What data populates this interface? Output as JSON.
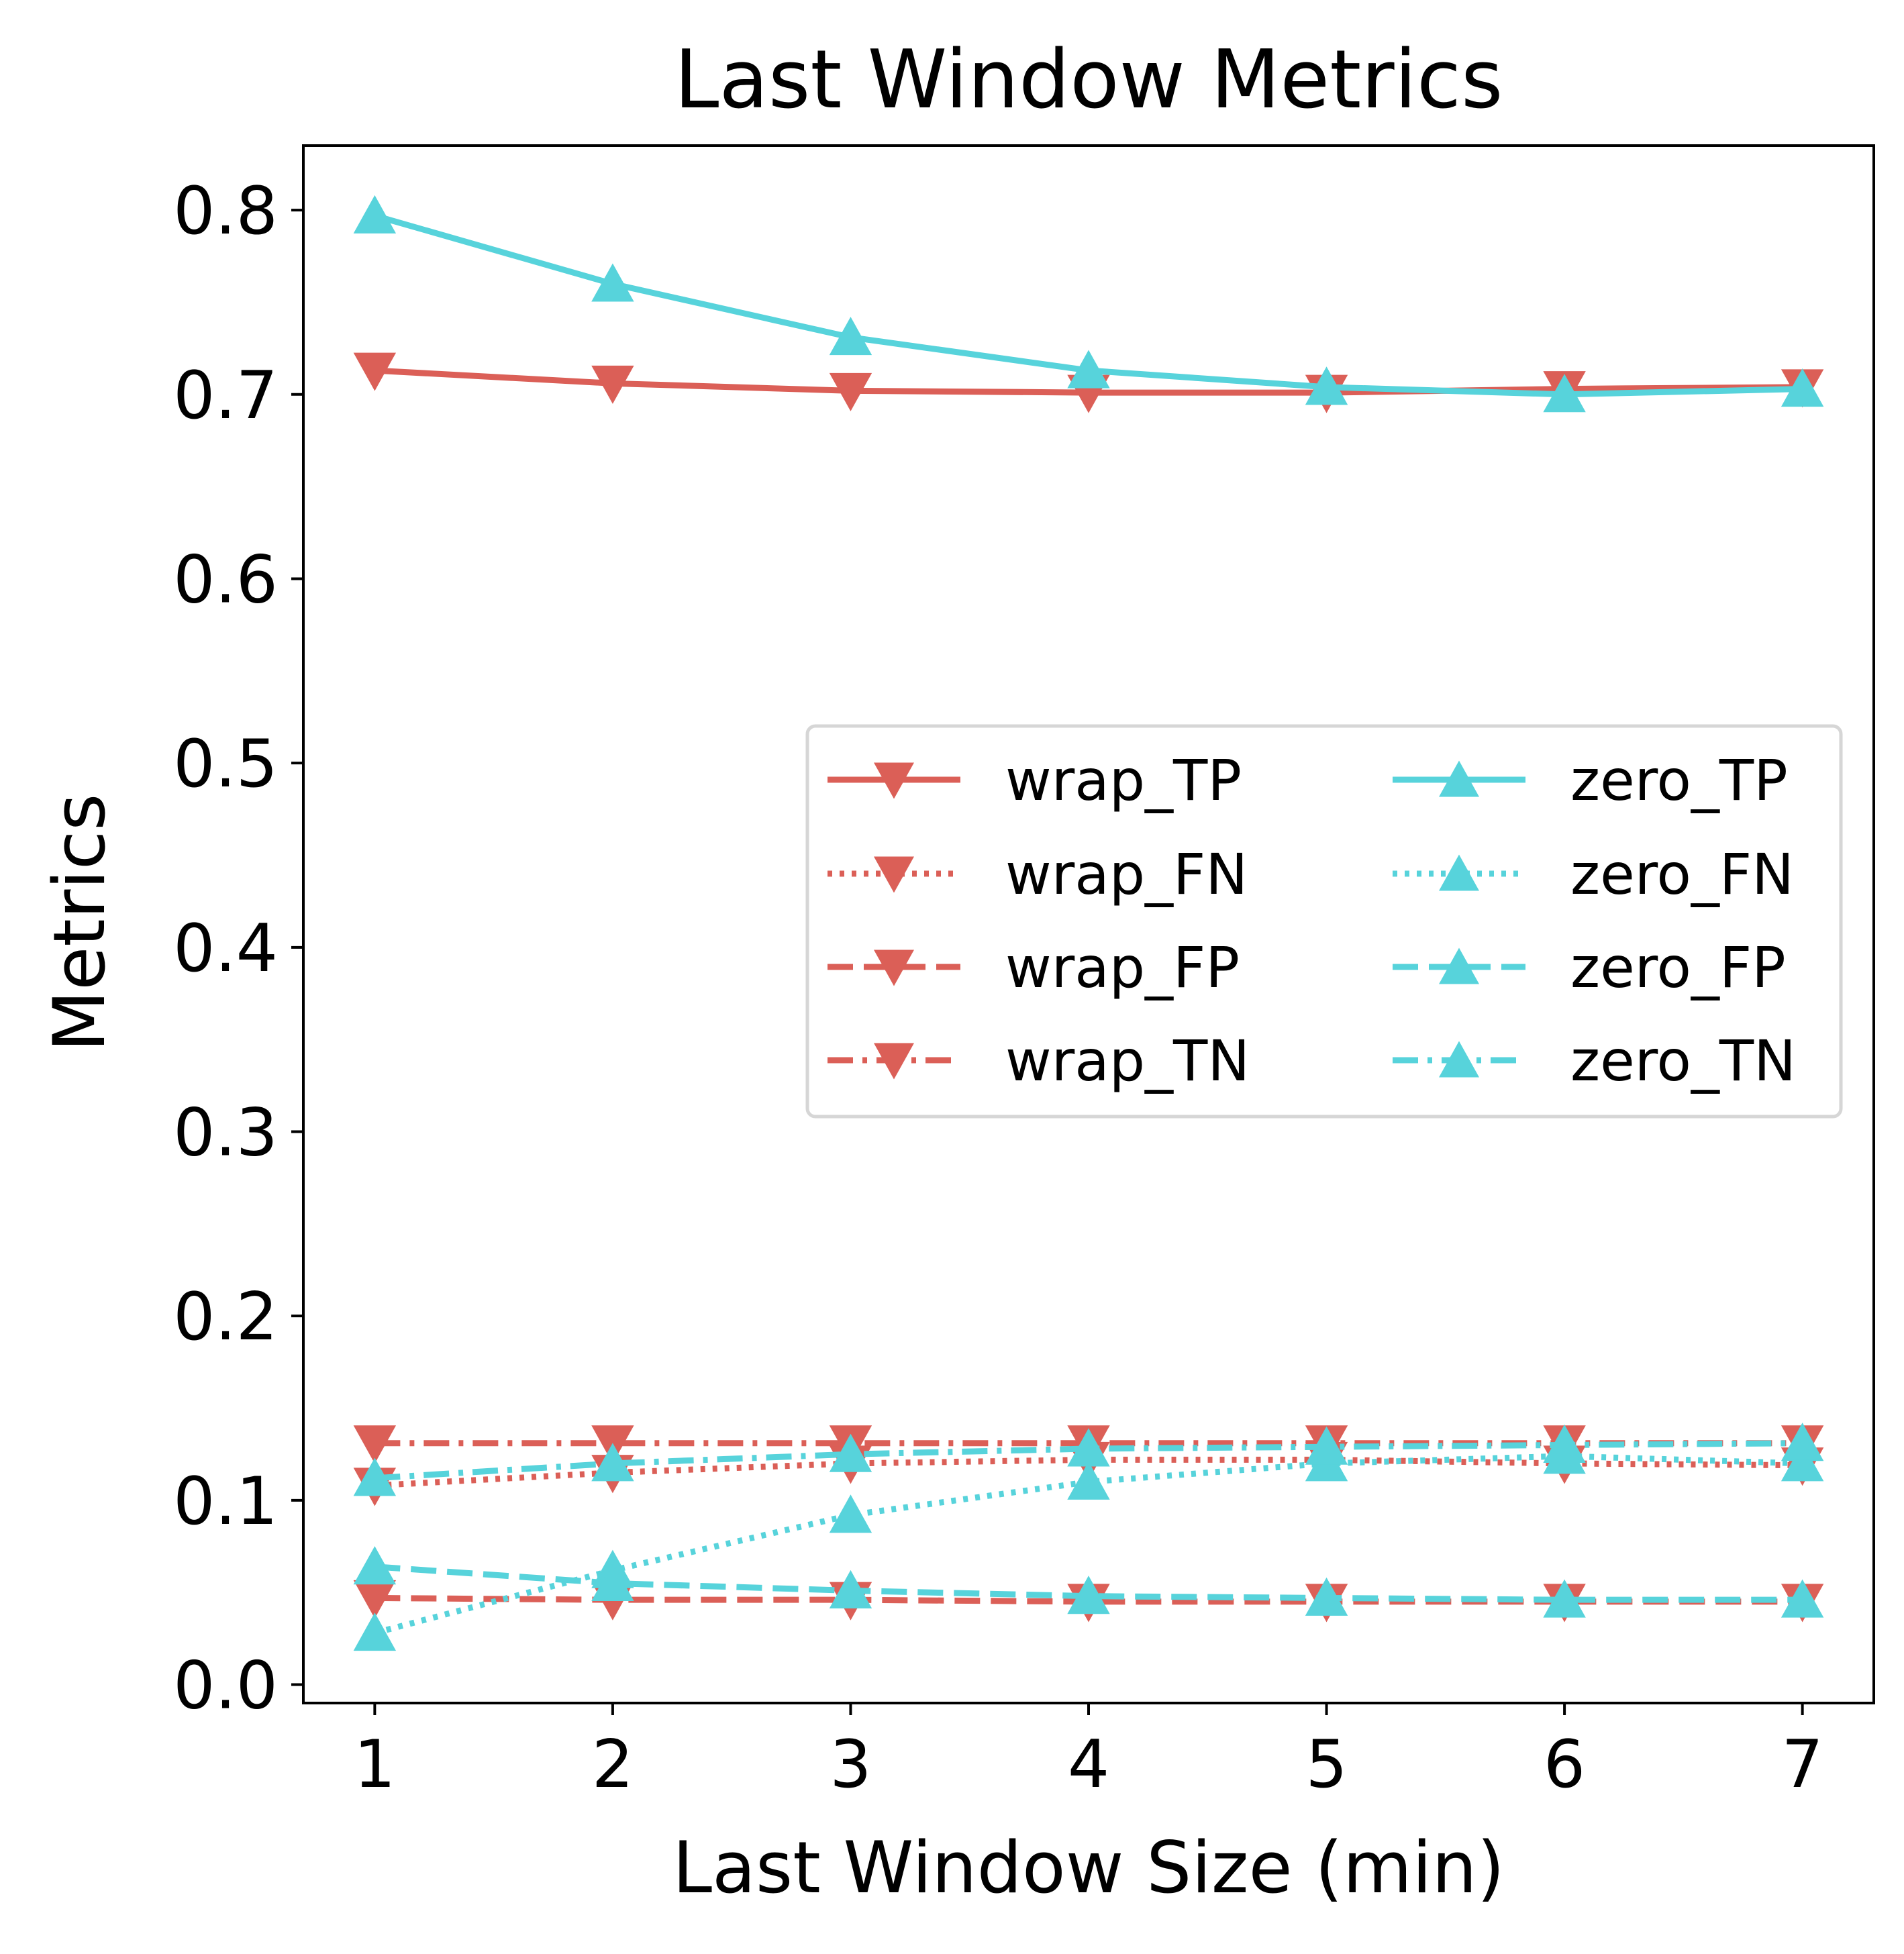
{
  "chart_data": {
    "type": "line",
    "title": "Last Window Metrics",
    "xlabel": "Last Window Size (min)",
    "ylabel": "Metrics",
    "x": [
      1,
      2,
      3,
      4,
      5,
      6,
      7
    ],
    "xticks": [
      "1",
      "2",
      "3",
      "4",
      "5",
      "6",
      "7"
    ],
    "yticks": [
      "0.0",
      "0.1",
      "0.2",
      "0.3",
      "0.4",
      "0.5",
      "0.6",
      "0.7",
      "0.8"
    ],
    "ylim": [
      -0.01,
      0.835
    ],
    "xlim": [
      0.7,
      7.3
    ],
    "grid": false,
    "legend_position": "center-right",
    "legend_columns": 2,
    "colors": {
      "wrap": "#db5f57",
      "zero": "#57d3db"
    },
    "series": [
      {
        "name": "wrap_TP",
        "color": "#db5f57",
        "linestyle": "solid",
        "marker": "triangle-down",
        "values": [
          0.713,
          0.706,
          0.702,
          0.701,
          0.701,
          0.703,
          0.704
        ]
      },
      {
        "name": "wrap_FN",
        "color": "#db5f57",
        "linestyle": "dotted",
        "marker": "triangle-down",
        "values": [
          0.108,
          0.115,
          0.12,
          0.122,
          0.122,
          0.12,
          0.119
        ]
      },
      {
        "name": "wrap_FP",
        "color": "#db5f57",
        "linestyle": "dashed",
        "marker": "triangle-down",
        "values": [
          0.047,
          0.046,
          0.046,
          0.045,
          0.045,
          0.045,
          0.045
        ]
      },
      {
        "name": "wrap_TN",
        "color": "#db5f57",
        "linestyle": "dashdot",
        "marker": "triangle-down",
        "values": [
          0.131,
          0.131,
          0.131,
          0.131,
          0.131,
          0.131,
          0.131
        ]
      },
      {
        "name": "zero_TP",
        "color": "#57d3db",
        "linestyle": "solid",
        "marker": "triangle-up",
        "values": [
          0.797,
          0.76,
          0.731,
          0.713,
          0.704,
          0.7,
          0.703
        ]
      },
      {
        "name": "zero_FN",
        "color": "#57d3db",
        "linestyle": "dotted",
        "marker": "triangle-up",
        "values": [
          0.028,
          0.062,
          0.092,
          0.11,
          0.12,
          0.124,
          0.12
        ]
      },
      {
        "name": "zero_FP",
        "color": "#57d3db",
        "linestyle": "dashed",
        "marker": "triangle-up",
        "values": [
          0.064,
          0.055,
          0.051,
          0.048,
          0.047,
          0.046,
          0.046
        ]
      },
      {
        "name": "zero_TN",
        "color": "#57d3db",
        "linestyle": "dashdot",
        "marker": "triangle-up",
        "values": [
          0.112,
          0.12,
          0.125,
          0.128,
          0.129,
          0.13,
          0.131
        ]
      }
    ]
  }
}
